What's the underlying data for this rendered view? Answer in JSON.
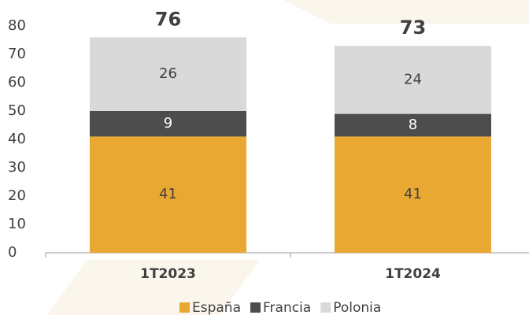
{
  "chart_data": {
    "type": "stacked_bar",
    "categories": [
      "1T2023",
      "1T2024"
    ],
    "series": [
      {
        "name": "España",
        "color": "#e9a832",
        "label_color": "#404040",
        "values": [
          41,
          41
        ]
      },
      {
        "name": "Francia",
        "color": "#4d4d4d",
        "label_color": "#ffffff",
        "values": [
          9,
          8
        ]
      },
      {
        "name": "Polonia",
        "color": "#d9d9d9",
        "label_color": "#404040",
        "values": [
          26,
          24
        ]
      }
    ],
    "totals": [
      76,
      73
    ],
    "ylim": [
      0,
      80
    ],
    "yticks": [
      0,
      10,
      20,
      30,
      40,
      50,
      60,
      70,
      80
    ],
    "grid": false,
    "legend": "bottom"
  }
}
